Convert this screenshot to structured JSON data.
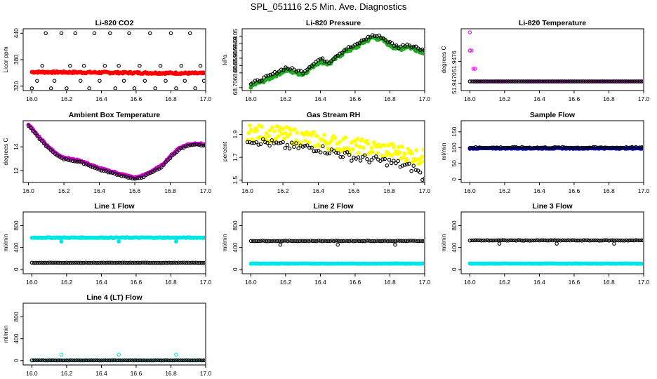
{
  "title": "SPL_051116  2.5 Min. Ave. Diagnostics",
  "chart_data": [
    {
      "id": "li820-co2",
      "type": "scatter",
      "title": "Li-820 CO2",
      "ylabel": "Licor ppm",
      "xlabel": "",
      "xlim": [
        15.95,
        17.0
      ],
      "ylim": [
        310,
        450
      ],
      "xticks": [
        "16.0",
        "16.2",
        "16.4",
        "16.6",
        "16.8",
        "17.0"
      ],
      "yticks": [
        320,
        380,
        440
      ],
      "series": [
        {
          "name": "co2-avg",
          "color": "#ff0000",
          "marker": "filled",
          "x_range": [
            16.0,
            17.0
          ],
          "y_start": 352,
          "y_end": 349,
          "noise": 2
        },
        {
          "name": "co2-raw",
          "color": "#000000",
          "marker": "open",
          "points": [
            [
              16.0,
              315
            ],
            [
              16.03,
              332
            ],
            [
              16.06,
              366
            ],
            [
              16.08,
              440
            ],
            [
              16.11,
              315
            ],
            [
              16.13,
              332
            ],
            [
              16.17,
              440
            ],
            [
              16.2,
              315
            ],
            [
              16.22,
              366
            ],
            [
              16.25,
              440
            ],
            [
              16.28,
              332
            ],
            [
              16.3,
              366
            ],
            [
              16.33,
              315
            ],
            [
              16.36,
              440
            ],
            [
              16.39,
              332
            ],
            [
              16.42,
              366
            ],
            [
              16.45,
              440
            ],
            [
              16.48,
              315
            ],
            [
              16.5,
              366
            ],
            [
              16.53,
              332
            ],
            [
              16.56,
              440
            ],
            [
              16.59,
              315
            ],
            [
              16.62,
              366
            ],
            [
              16.65,
              332
            ],
            [
              16.68,
              440
            ],
            [
              16.71,
              315
            ],
            [
              16.74,
              366
            ],
            [
              16.77,
              332
            ],
            [
              16.8,
              440
            ],
            [
              16.83,
              315
            ],
            [
              16.86,
              366
            ],
            [
              16.88,
              332
            ],
            [
              16.91,
              440
            ],
            [
              16.94,
              315
            ],
            [
              16.97,
              366
            ],
            [
              16.99,
              332
            ]
          ]
        }
      ]
    },
    {
      "id": "li820-pressure",
      "type": "scatter",
      "title": "Li-820 Pressure",
      "ylabel": "kPa",
      "xlabel": "",
      "xlim": [
        15.95,
        17.0
      ],
      "ylim": [
        68.68,
        69.1
      ],
      "xticks": [
        "16.0",
        "16.2",
        "16.4",
        "16.6",
        "16.8",
        "17.0"
      ],
      "yticks": [
        "68.70",
        "68.80",
        "68.85",
        "68.90",
        "68.95",
        "69.00",
        "69.05"
      ],
      "series": [
        {
          "name": "pressure-avg",
          "color": "#1faa1f",
          "marker": "filled",
          "path": [
            [
              16.0,
              68.71
            ],
            [
              16.1,
              68.76
            ],
            [
              16.2,
              68.82
            ],
            [
              16.3,
              68.79
            ],
            [
              16.35,
              68.84
            ],
            [
              16.4,
              68.88
            ],
            [
              16.45,
              68.86
            ],
            [
              16.5,
              68.91
            ],
            [
              16.55,
              68.95
            ],
            [
              16.6,
              68.97
            ],
            [
              16.65,
              69.01
            ],
            [
              16.7,
              69.04
            ],
            [
              16.75,
              69.03
            ],
            [
              16.8,
              68.99
            ],
            [
              16.85,
              68.96
            ],
            [
              16.9,
              68.98
            ],
            [
              16.95,
              68.96
            ],
            [
              17.0,
              68.94
            ]
          ],
          "noise": 0.012
        },
        {
          "name": "pressure-raw",
          "color": "#000000",
          "marker": "open",
          "offset": 0.015,
          "path": [
            [
              16.0,
              68.71
            ],
            [
              16.1,
              68.76
            ],
            [
              16.2,
              68.82
            ],
            [
              16.3,
              68.79
            ],
            [
              16.35,
              68.84
            ],
            [
              16.4,
              68.88
            ],
            [
              16.45,
              68.86
            ],
            [
              16.5,
              68.91
            ],
            [
              16.55,
              68.95
            ],
            [
              16.6,
              68.97
            ],
            [
              16.65,
              69.01
            ],
            [
              16.7,
              69.04
            ],
            [
              16.75,
              69.03
            ],
            [
              16.8,
              68.99
            ],
            [
              16.85,
              68.96
            ],
            [
              16.9,
              68.98
            ],
            [
              16.95,
              68.96
            ],
            [
              17.0,
              68.94
            ]
          ],
          "noise": 0.01
        }
      ]
    },
    {
      "id": "li820-temperature",
      "type": "scatter",
      "title": "Li-820 Temperature",
      "ylabel": "degrees C",
      "xlabel": "",
      "xlim": [
        15.95,
        17.0
      ],
      "ylim": [
        51.9468,
        51.9485
      ],
      "xticks": [
        "16.0",
        "16.2",
        "16.4",
        "16.6",
        "16.8",
        "17.0"
      ],
      "yticks": [
        "51.9470",
        "51.9476"
      ],
      "series": [
        {
          "name": "temp-magenta",
          "color": "#ff00ff",
          "marker": "open",
          "points": [
            [
              16.0,
              51.9484
            ],
            [
              16.0,
              51.9479
            ],
            [
              16.01,
              51.9479
            ],
            [
              16.02,
              51.9474
            ],
            [
              16.03,
              51.9474
            ]
          ],
          "flat_y": 51.94705
        },
        {
          "name": "temp-dark",
          "color": "#000000",
          "marker": "open",
          "flat_y": 51.94705
        }
      ]
    },
    {
      "id": "ambient-box-temperature",
      "type": "scatter",
      "title": "Ambient Box Temperature",
      "ylabel": "degrees C",
      "xlabel": "",
      "xlim": [
        15.97,
        17.0
      ],
      "ylim": [
        11.0,
        16.2
      ],
      "xticks": [
        "16.0",
        "16.2",
        "16.4",
        "16.6",
        "16.8",
        "17.0"
      ],
      "yticks": [
        12,
        14
      ],
      "series": [
        {
          "name": "box-avg",
          "color": "#cc00cc",
          "marker": "filled",
          "path": [
            [
              16.0,
              15.9
            ],
            [
              16.05,
              15.0
            ],
            [
              16.1,
              14.2
            ],
            [
              16.15,
              13.5
            ],
            [
              16.2,
              13.1
            ],
            [
              16.3,
              12.8
            ],
            [
              16.4,
              12.2
            ],
            [
              16.5,
              11.8
            ],
            [
              16.6,
              11.4
            ],
            [
              16.65,
              11.6
            ],
            [
              16.7,
              12.0
            ],
            [
              16.75,
              12.4
            ],
            [
              16.8,
              13.2
            ],
            [
              16.85,
              13.9
            ],
            [
              16.9,
              14.2
            ],
            [
              16.95,
              14.3
            ],
            [
              17.0,
              14.2
            ]
          ],
          "noise": 0.05
        },
        {
          "name": "box-raw",
          "color": "#000000",
          "marker": "open",
          "offset": -0.12,
          "path": [
            [
              16.0,
              15.9
            ],
            [
              16.05,
              15.0
            ],
            [
              16.1,
              14.2
            ],
            [
              16.15,
              13.5
            ],
            [
              16.2,
              13.1
            ],
            [
              16.3,
              12.8
            ],
            [
              16.4,
              12.2
            ],
            [
              16.5,
              11.8
            ],
            [
              16.6,
              11.4
            ],
            [
              16.65,
              11.6
            ],
            [
              16.7,
              12.0
            ],
            [
              16.75,
              12.4
            ],
            [
              16.8,
              13.2
            ],
            [
              16.85,
              13.9
            ],
            [
              16.9,
              14.2
            ],
            [
              16.95,
              14.3
            ],
            [
              17.0,
              14.2
            ]
          ],
          "noise": 0.04
        }
      ]
    },
    {
      "id": "gas-stream-rh",
      "type": "scatter",
      "title": "Gas Stream RH",
      "ylabel": "percent",
      "xlabel": "",
      "xlim": [
        15.97,
        17.0
      ],
      "ylim": [
        1.48,
        2.02
      ],
      "xticks": [
        "16.0",
        "16.2",
        "16.4",
        "16.6",
        "16.8",
        "17.0"
      ],
      "yticks": [
        "1.5",
        "1.7",
        "1.9"
      ],
      "series": [
        {
          "name": "rh-avg",
          "color": "#ffff00",
          "marker": "filled",
          "path": [
            [
              16.0,
              1.92
            ],
            [
              16.2,
              1.9
            ],
            [
              16.4,
              1.85
            ],
            [
              16.6,
              1.8
            ],
            [
              16.8,
              1.76
            ],
            [
              17.0,
              1.7
            ]
          ],
          "noise": 0.07
        },
        {
          "name": "rh-raw",
          "color": "#000000",
          "marker": "open",
          "path": [
            [
              16.0,
              1.86
            ],
            [
              16.2,
              1.8
            ],
            [
              16.4,
              1.78
            ],
            [
              16.6,
              1.7
            ],
            [
              16.8,
              1.66
            ],
            [
              16.95,
              1.6
            ],
            [
              17.0,
              1.5
            ]
          ],
          "noise": 0.035
        }
      ]
    },
    {
      "id": "sample-flow",
      "type": "scatter",
      "title": "Sample Flow",
      "ylabel": "ml/min",
      "xlabel": "",
      "xlim": [
        15.95,
        17.0
      ],
      "ylim": [
        -10,
        185
      ],
      "xticks": [
        "16.0",
        "16.2",
        "16.4",
        "16.6",
        "16.8",
        "17.0"
      ],
      "yticks": [
        0,
        50,
        100,
        150
      ],
      "series": [
        {
          "name": "sample-avg",
          "color": "#0000ff",
          "marker": "filled",
          "flat_y": 98,
          "noise": 1.5
        },
        {
          "name": "sample-raw",
          "color": "#000000",
          "marker": "open",
          "flat_y": 100,
          "noise": 2
        }
      ]
    },
    {
      "id": "line1-flow",
      "type": "scatter",
      "title": "Line 1 Flow",
      "ylabel": "ml/min",
      "xlabel": "",
      "xlim": [
        15.95,
        17.0
      ],
      "ylim": [
        -80,
        1050
      ],
      "xticks": [
        "16.0",
        "16.2",
        "16.4",
        "16.6",
        "16.8",
        "17.0"
      ],
      "yticks": [
        0,
        400,
        800
      ],
      "series": [
        {
          "name": "line1-avg",
          "color": "#00e5e5",
          "marker": "filled",
          "flat_y": 580,
          "noise": 6,
          "dips": [
            [
              16.17,
              510
            ],
            [
              16.5,
              510
            ],
            [
              16.83,
              510
            ]
          ]
        },
        {
          "name": "line1-raw",
          "color": "#000000",
          "marker": "open",
          "flat_y": 120,
          "noise": 3
        }
      ]
    },
    {
      "id": "line2-flow",
      "type": "scatter",
      "title": "Line 2 Flow",
      "ylabel": "ml/min",
      "xlabel": "",
      "xlim": [
        15.95,
        17.0
      ],
      "ylim": [
        -80,
        1050
      ],
      "xticks": [
        "16.0",
        "16.2",
        "16.4",
        "16.6",
        "16.8",
        "17.0"
      ],
      "yticks": [
        0,
        400,
        800
      ],
      "series": [
        {
          "name": "line2-avg",
          "color": "#00e5e5",
          "marker": "filled",
          "flat_y": 105,
          "noise": 3
        },
        {
          "name": "line2-raw",
          "color": "#000000",
          "marker": "open",
          "flat_y": 520,
          "noise": 5,
          "dips": [
            [
              16.17,
              450
            ],
            [
              16.5,
              450
            ],
            [
              16.83,
              450
            ]
          ]
        }
      ]
    },
    {
      "id": "line3-flow",
      "type": "scatter",
      "title": "Line 3 Flow",
      "ylabel": "ml/min",
      "xlabel": "",
      "xlim": [
        15.95,
        17.0
      ],
      "ylim": [
        -80,
        1050
      ],
      "xticks": [
        "16.0",
        "16.2",
        "16.4",
        "16.6",
        "16.8",
        "17.0"
      ],
      "yticks": [
        0,
        400,
        800
      ],
      "series": [
        {
          "name": "line3-avg",
          "color": "#00e5e5",
          "marker": "filled",
          "flat_y": 105,
          "noise": 3
        },
        {
          "name": "line3-raw",
          "color": "#000000",
          "marker": "open",
          "flat_y": 530,
          "noise": 5,
          "dips": [
            [
              16.17,
              470
            ],
            [
              16.5,
              470
            ],
            [
              16.83,
              470
            ]
          ]
        }
      ]
    },
    {
      "id": "line4-flow",
      "type": "scatter",
      "title": "Line 4 (LT) Flow",
      "ylabel": "ml/min",
      "xlabel": "",
      "xlim": [
        15.95,
        17.0
      ],
      "ylim": [
        -80,
        1050
      ],
      "xticks": [
        "16.0",
        "16.2",
        "16.4",
        "16.6",
        "16.8",
        "17.0"
      ],
      "yticks": [
        0,
        400,
        800
      ],
      "series": [
        {
          "name": "line4-avg",
          "color": "#00e5e5",
          "marker": "open",
          "flat_y": 5,
          "noise": 2,
          "dips": [
            [
              16.17,
              110
            ],
            [
              16.5,
              110
            ],
            [
              16.83,
              110
            ]
          ]
        },
        {
          "name": "line4-raw",
          "color": "#000000",
          "marker": "open",
          "flat_y": 5,
          "noise": 2
        }
      ]
    }
  ]
}
